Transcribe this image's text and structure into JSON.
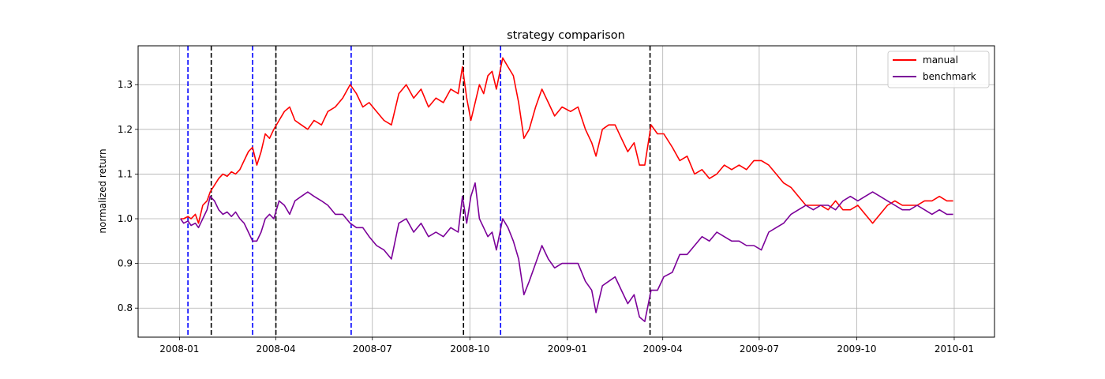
{
  "chart_data": {
    "type": "line",
    "title": "strategy comparison",
    "xlabel": "",
    "ylabel": "normalized return",
    "xlim": [
      "2007-11-23",
      "2010-02-08"
    ],
    "ylim": [
      0.735,
      1.387
    ],
    "grid": true,
    "legend_position": "top-right",
    "x_ticks": [
      {
        "date": "2008-01-01",
        "label": "2008-01"
      },
      {
        "date": "2008-04-01",
        "label": "2008-04"
      },
      {
        "date": "2008-07-01",
        "label": "2008-07"
      },
      {
        "date": "2008-10-01",
        "label": "2008-10"
      },
      {
        "date": "2009-01-01",
        "label": "2009-01"
      },
      {
        "date": "2009-04-01",
        "label": "2009-04"
      },
      {
        "date": "2009-07-01",
        "label": "2009-07"
      },
      {
        "date": "2009-10-01",
        "label": "2009-10"
      },
      {
        "date": "2010-01-01",
        "label": "2010-01"
      }
    ],
    "y_ticks": [
      {
        "value": 0.8,
        "label": "0.8"
      },
      {
        "value": 0.9,
        "label": "0.9"
      },
      {
        "value": 1.0,
        "label": "1.0"
      },
      {
        "value": 1.1,
        "label": "1.1"
      },
      {
        "value": 1.2,
        "label": "1.2"
      },
      {
        "value": 1.3,
        "label": "1.3"
      }
    ],
    "series": [
      {
        "name": "manual",
        "color": "#ff0000",
        "points": [
          [
            "2008-01-02",
            1.0
          ],
          [
            "2008-01-05",
            1.0
          ],
          [
            "2008-01-09",
            1.005
          ],
          [
            "2008-01-12",
            1.0
          ],
          [
            "2008-01-16",
            1.01
          ],
          [
            "2008-01-19",
            0.99
          ],
          [
            "2008-01-23",
            1.03
          ],
          [
            "2008-01-27",
            1.04
          ],
          [
            "2008-01-30",
            1.06
          ],
          [
            "2008-02-03",
            1.075
          ],
          [
            "2008-02-07",
            1.09
          ],
          [
            "2008-02-11",
            1.1
          ],
          [
            "2008-02-15",
            1.095
          ],
          [
            "2008-02-19",
            1.105
          ],
          [
            "2008-02-23",
            1.1
          ],
          [
            "2008-02-27",
            1.11
          ],
          [
            "2008-03-02",
            1.13
          ],
          [
            "2008-03-06",
            1.15
          ],
          [
            "2008-03-10",
            1.16
          ],
          [
            "2008-03-14",
            1.12
          ],
          [
            "2008-03-18",
            1.15
          ],
          [
            "2008-03-22",
            1.19
          ],
          [
            "2008-03-26",
            1.18
          ],
          [
            "2008-03-30",
            1.2
          ],
          [
            "2008-04-04",
            1.22
          ],
          [
            "2008-04-09",
            1.24
          ],
          [
            "2008-04-14",
            1.25
          ],
          [
            "2008-04-19",
            1.22
          ],
          [
            "2008-04-25",
            1.21
          ],
          [
            "2008-05-01",
            1.2
          ],
          [
            "2008-05-07",
            1.22
          ],
          [
            "2008-05-14",
            1.21
          ],
          [
            "2008-05-20",
            1.24
          ],
          [
            "2008-05-27",
            1.25
          ],
          [
            "2008-06-03",
            1.27
          ],
          [
            "2008-06-10",
            1.3
          ],
          [
            "2008-06-16",
            1.28
          ],
          [
            "2008-06-22",
            1.25
          ],
          [
            "2008-06-28",
            1.26
          ],
          [
            "2008-07-05",
            1.24
          ],
          [
            "2008-07-12",
            1.22
          ],
          [
            "2008-07-19",
            1.21
          ],
          [
            "2008-07-26",
            1.28
          ],
          [
            "2008-08-02",
            1.3
          ],
          [
            "2008-08-09",
            1.27
          ],
          [
            "2008-08-16",
            1.29
          ],
          [
            "2008-08-23",
            1.25
          ],
          [
            "2008-08-30",
            1.27
          ],
          [
            "2008-09-06",
            1.26
          ],
          [
            "2008-09-13",
            1.29
          ],
          [
            "2008-09-20",
            1.28
          ],
          [
            "2008-09-24",
            1.34
          ],
          [
            "2008-09-28",
            1.27
          ],
          [
            "2008-10-02",
            1.22
          ],
          [
            "2008-10-06",
            1.26
          ],
          [
            "2008-10-10",
            1.3
          ],
          [
            "2008-10-14",
            1.28
          ],
          [
            "2008-10-18",
            1.32
          ],
          [
            "2008-10-22",
            1.33
          ],
          [
            "2008-10-26",
            1.29
          ],
          [
            "2008-11-01",
            1.36
          ],
          [
            "2008-11-06",
            1.34
          ],
          [
            "2008-11-11",
            1.32
          ],
          [
            "2008-11-16",
            1.26
          ],
          [
            "2008-11-21",
            1.18
          ],
          [
            "2008-11-26",
            1.2
          ],
          [
            "2008-12-02",
            1.25
          ],
          [
            "2008-12-08",
            1.29
          ],
          [
            "2008-12-14",
            1.26
          ],
          [
            "2008-12-20",
            1.23
          ],
          [
            "2008-12-27",
            1.25
          ],
          [
            "2009-01-04",
            1.24
          ],
          [
            "2009-01-11",
            1.25
          ],
          [
            "2009-01-18",
            1.2
          ],
          [
            "2009-01-24",
            1.17
          ],
          [
            "2009-01-28",
            1.14
          ],
          [
            "2009-02-03",
            1.2
          ],
          [
            "2009-02-09",
            1.21
          ],
          [
            "2009-02-15",
            1.21
          ],
          [
            "2009-02-21",
            1.18
          ],
          [
            "2009-02-27",
            1.15
          ],
          [
            "2009-03-05",
            1.17
          ],
          [
            "2009-03-10",
            1.12
          ],
          [
            "2009-03-15",
            1.12
          ],
          [
            "2009-03-21",
            1.21
          ],
          [
            "2009-03-27",
            1.19
          ],
          [
            "2009-04-02",
            1.19
          ],
          [
            "2009-04-10",
            1.16
          ],
          [
            "2009-04-17",
            1.13
          ],
          [
            "2009-04-24",
            1.14
          ],
          [
            "2009-05-01",
            1.1
          ],
          [
            "2009-05-08",
            1.11
          ],
          [
            "2009-05-15",
            1.09
          ],
          [
            "2009-05-22",
            1.1
          ],
          [
            "2009-05-29",
            1.12
          ],
          [
            "2009-06-05",
            1.11
          ],
          [
            "2009-06-12",
            1.12
          ],
          [
            "2009-06-19",
            1.11
          ],
          [
            "2009-06-26",
            1.13
          ],
          [
            "2009-07-03",
            1.13
          ],
          [
            "2009-07-10",
            1.12
          ],
          [
            "2009-07-17",
            1.1
          ],
          [
            "2009-07-24",
            1.08
          ],
          [
            "2009-07-31",
            1.07
          ],
          [
            "2009-08-07",
            1.05
          ],
          [
            "2009-08-14",
            1.03
          ],
          [
            "2009-08-21",
            1.03
          ],
          [
            "2009-08-28",
            1.03
          ],
          [
            "2009-09-04",
            1.02
          ],
          [
            "2009-09-11",
            1.04
          ],
          [
            "2009-09-18",
            1.02
          ],
          [
            "2009-09-25",
            1.02
          ],
          [
            "2009-10-02",
            1.03
          ],
          [
            "2009-10-09",
            1.01
          ],
          [
            "2009-10-16",
            0.99
          ],
          [
            "2009-10-23",
            1.01
          ],
          [
            "2009-10-30",
            1.03
          ],
          [
            "2009-11-06",
            1.04
          ],
          [
            "2009-11-13",
            1.03
          ],
          [
            "2009-11-20",
            1.03
          ],
          [
            "2009-11-27",
            1.03
          ],
          [
            "2009-12-04",
            1.04
          ],
          [
            "2009-12-11",
            1.04
          ],
          [
            "2009-12-18",
            1.05
          ],
          [
            "2009-12-25",
            1.04
          ],
          [
            "2009-12-31",
            1.04
          ]
        ]
      },
      {
        "name": "benchmark",
        "color": "#7b0099",
        "points": [
          [
            "2008-01-02",
            1.0
          ],
          [
            "2008-01-05",
            0.99
          ],
          [
            "2008-01-09",
            0.995
          ],
          [
            "2008-01-12",
            0.985
          ],
          [
            "2008-01-16",
            0.99
          ],
          [
            "2008-01-19",
            0.98
          ],
          [
            "2008-01-23",
            1.0
          ],
          [
            "2008-01-27",
            1.02
          ],
          [
            "2008-01-30",
            1.05
          ],
          [
            "2008-02-03",
            1.04
          ],
          [
            "2008-02-07",
            1.02
          ],
          [
            "2008-02-11",
            1.01
          ],
          [
            "2008-02-15",
            1.015
          ],
          [
            "2008-02-19",
            1.005
          ],
          [
            "2008-02-23",
            1.015
          ],
          [
            "2008-02-27",
            1.0
          ],
          [
            "2008-03-02",
            0.99
          ],
          [
            "2008-03-06",
            0.97
          ],
          [
            "2008-03-10",
            0.95
          ],
          [
            "2008-03-14",
            0.95
          ],
          [
            "2008-03-18",
            0.97
          ],
          [
            "2008-03-22",
            1.0
          ],
          [
            "2008-03-26",
            1.01
          ],
          [
            "2008-03-30",
            1.0
          ],
          [
            "2008-04-04",
            1.04
          ],
          [
            "2008-04-09",
            1.03
          ],
          [
            "2008-04-14",
            1.01
          ],
          [
            "2008-04-19",
            1.04
          ],
          [
            "2008-04-25",
            1.05
          ],
          [
            "2008-05-01",
            1.06
          ],
          [
            "2008-05-07",
            1.05
          ],
          [
            "2008-05-14",
            1.04
          ],
          [
            "2008-05-20",
            1.03
          ],
          [
            "2008-05-27",
            1.01
          ],
          [
            "2008-06-03",
            1.01
          ],
          [
            "2008-06-10",
            0.99
          ],
          [
            "2008-06-16",
            0.98
          ],
          [
            "2008-06-22",
            0.98
          ],
          [
            "2008-06-28",
            0.96
          ],
          [
            "2008-07-05",
            0.94
          ],
          [
            "2008-07-12",
            0.93
          ],
          [
            "2008-07-19",
            0.91
          ],
          [
            "2008-07-26",
            0.99
          ],
          [
            "2008-08-02",
            1.0
          ],
          [
            "2008-08-09",
            0.97
          ],
          [
            "2008-08-16",
            0.99
          ],
          [
            "2008-08-23",
            0.96
          ],
          [
            "2008-08-30",
            0.97
          ],
          [
            "2008-09-06",
            0.96
          ],
          [
            "2008-09-13",
            0.98
          ],
          [
            "2008-09-20",
            0.97
          ],
          [
            "2008-09-24",
            1.05
          ],
          [
            "2008-09-28",
            0.99
          ],
          [
            "2008-10-02",
            1.05
          ],
          [
            "2008-10-06",
            1.08
          ],
          [
            "2008-10-10",
            1.0
          ],
          [
            "2008-10-14",
            0.98
          ],
          [
            "2008-10-18",
            0.96
          ],
          [
            "2008-10-22",
            0.97
          ],
          [
            "2008-10-26",
            0.93
          ],
          [
            "2008-11-01",
            1.0
          ],
          [
            "2008-11-06",
            0.98
          ],
          [
            "2008-11-11",
            0.95
          ],
          [
            "2008-11-16",
            0.91
          ],
          [
            "2008-11-21",
            0.83
          ],
          [
            "2008-11-26",
            0.86
          ],
          [
            "2008-12-02",
            0.9
          ],
          [
            "2008-12-08",
            0.94
          ],
          [
            "2008-12-14",
            0.91
          ],
          [
            "2008-12-20",
            0.89
          ],
          [
            "2008-12-27",
            0.9
          ],
          [
            "2009-01-04",
            0.9
          ],
          [
            "2009-01-11",
            0.9
          ],
          [
            "2009-01-18",
            0.86
          ],
          [
            "2009-01-24",
            0.84
          ],
          [
            "2009-01-28",
            0.79
          ],
          [
            "2009-02-03",
            0.85
          ],
          [
            "2009-02-09",
            0.86
          ],
          [
            "2009-02-15",
            0.87
          ],
          [
            "2009-02-21",
            0.84
          ],
          [
            "2009-02-27",
            0.81
          ],
          [
            "2009-03-05",
            0.83
          ],
          [
            "2009-03-10",
            0.78
          ],
          [
            "2009-03-15",
            0.77
          ],
          [
            "2009-03-21",
            0.84
          ],
          [
            "2009-03-27",
            0.84
          ],
          [
            "2009-04-02",
            0.87
          ],
          [
            "2009-04-10",
            0.88
          ],
          [
            "2009-04-17",
            0.92
          ],
          [
            "2009-04-24",
            0.92
          ],
          [
            "2009-05-01",
            0.94
          ],
          [
            "2009-05-08",
            0.96
          ],
          [
            "2009-05-15",
            0.95
          ],
          [
            "2009-05-22",
            0.97
          ],
          [
            "2009-05-29",
            0.96
          ],
          [
            "2009-06-05",
            0.95
          ],
          [
            "2009-06-12",
            0.95
          ],
          [
            "2009-06-19",
            0.94
          ],
          [
            "2009-06-26",
            0.94
          ],
          [
            "2009-07-03",
            0.93
          ],
          [
            "2009-07-10",
            0.97
          ],
          [
            "2009-07-17",
            0.98
          ],
          [
            "2009-07-24",
            0.99
          ],
          [
            "2009-07-31",
            1.01
          ],
          [
            "2009-08-07",
            1.02
          ],
          [
            "2009-08-14",
            1.03
          ],
          [
            "2009-08-21",
            1.02
          ],
          [
            "2009-08-28",
            1.03
          ],
          [
            "2009-09-04",
            1.03
          ],
          [
            "2009-09-11",
            1.02
          ],
          [
            "2009-09-18",
            1.04
          ],
          [
            "2009-09-25",
            1.05
          ],
          [
            "2009-10-02",
            1.04
          ],
          [
            "2009-10-09",
            1.05
          ],
          [
            "2009-10-16",
            1.06
          ],
          [
            "2009-10-23",
            1.05
          ],
          [
            "2009-10-30",
            1.04
          ],
          [
            "2009-11-06",
            1.03
          ],
          [
            "2009-11-13",
            1.02
          ],
          [
            "2009-11-20",
            1.02
          ],
          [
            "2009-11-27",
            1.03
          ],
          [
            "2009-12-04",
            1.02
          ],
          [
            "2009-12-11",
            1.01
          ],
          [
            "2009-12-18",
            1.02
          ],
          [
            "2009-12-25",
            1.01
          ],
          [
            "2009-12-31",
            1.01
          ]
        ]
      }
    ],
    "vertical_lines": [
      {
        "date": "2008-01-09",
        "color": "#0000ff",
        "style": "dashed"
      },
      {
        "date": "2008-01-31",
        "color": "#000000",
        "style": "dashed"
      },
      {
        "date": "2008-03-10",
        "color": "#0000ff",
        "style": "dashed"
      },
      {
        "date": "2008-04-01",
        "color": "#000000",
        "style": "dashed"
      },
      {
        "date": "2008-06-11",
        "color": "#0000ff",
        "style": "dashed"
      },
      {
        "date": "2008-09-25",
        "color": "#000000",
        "style": "dashed"
      },
      {
        "date": "2008-10-30",
        "color": "#0000ff",
        "style": "dashed"
      },
      {
        "date": "2009-03-20",
        "color": "#000000",
        "style": "dashed"
      }
    ]
  }
}
